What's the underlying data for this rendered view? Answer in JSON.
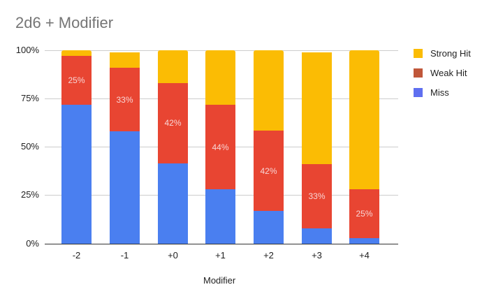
{
  "chart_data": {
    "type": "bar",
    "stacked": true,
    "title": "2d6 + Modifier",
    "xlabel": "Modifier",
    "ylabel": "",
    "ylim": [
      0,
      100
    ],
    "yticks": [
      "0%",
      "25%",
      "50%",
      "75%",
      "100%"
    ],
    "categories": [
      "-2",
      "-1",
      "+0",
      "+1",
      "+2",
      "+3",
      "+4"
    ],
    "series": [
      {
        "name": "Miss",
        "color": "#4a7ff0",
        "values": [
          72,
          58,
          42,
          28,
          17,
          8,
          3
        ]
      },
      {
        "name": "Weak Hit",
        "color": "#e84532",
        "values": [
          25,
          33,
          42,
          44,
          42,
          33,
          25
        ]
      },
      {
        "name": "Strong Hit",
        "color": "#fbbc04",
        "values": [
          3,
          8,
          17,
          28,
          42,
          58,
          72
        ]
      }
    ],
    "data_labels": {
      "Weak Hit": [
        "25%",
        "33%",
        "42%",
        "44%",
        "42%",
        "33%",
        "25%"
      ]
    },
    "legend_position": "right",
    "grid": true
  }
}
